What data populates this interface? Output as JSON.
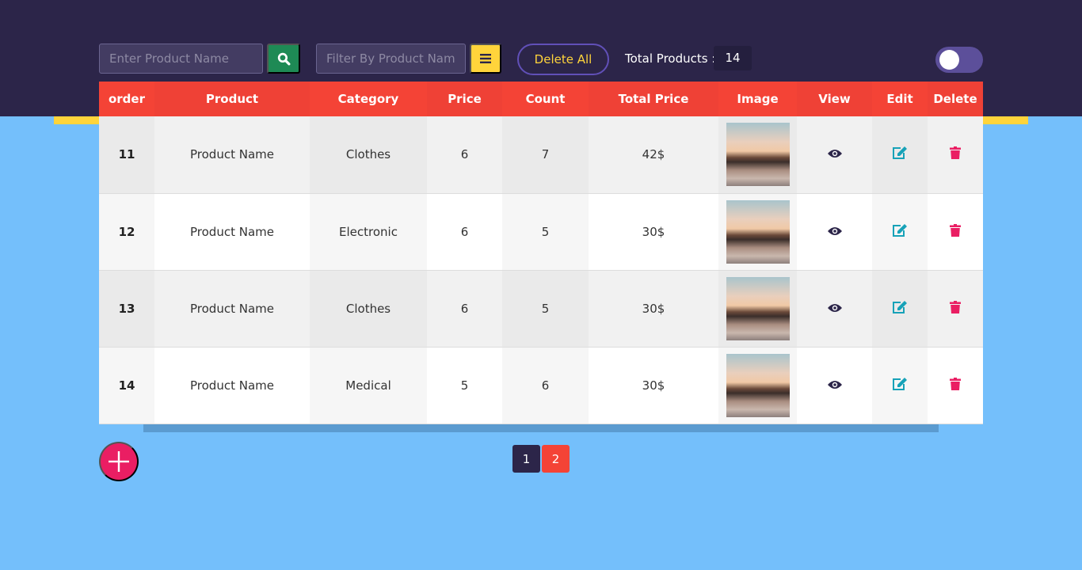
{
  "toolbar": {
    "search_placeholder": "Enter Product Name",
    "filter_placeholder": "Filter By Product Name",
    "delete_all_label": "Delete All",
    "total_label": "Total Products :",
    "total_count": "14",
    "dark_mode_toggle_on": false
  },
  "table": {
    "headers": [
      "order",
      "Product",
      "Category",
      "Price",
      "Count",
      "Total Price",
      "Image",
      "View",
      "Edit",
      "Delete"
    ],
    "rows": [
      {
        "order": "11",
        "product": "Product Name",
        "category": "Clothes",
        "price": "6",
        "count": "7",
        "total": "42$"
      },
      {
        "order": "12",
        "product": "Product Name",
        "category": "Electronic",
        "price": "6",
        "count": "5",
        "total": "30$"
      },
      {
        "order": "13",
        "product": "Product Name",
        "category": "Clothes",
        "price": "6",
        "count": "5",
        "total": "30$"
      },
      {
        "order": "14",
        "product": "Product Name",
        "category": "Medical",
        "price": "5",
        "count": "6",
        "total": "30$"
      }
    ]
  },
  "pagination": {
    "pages": [
      "1",
      "2"
    ],
    "active": "2"
  },
  "colors": {
    "header": "#2c2549",
    "table_header": "#f44336",
    "background": "#74bffb",
    "accent": "#ffd43b",
    "add": "#ea1e63"
  }
}
